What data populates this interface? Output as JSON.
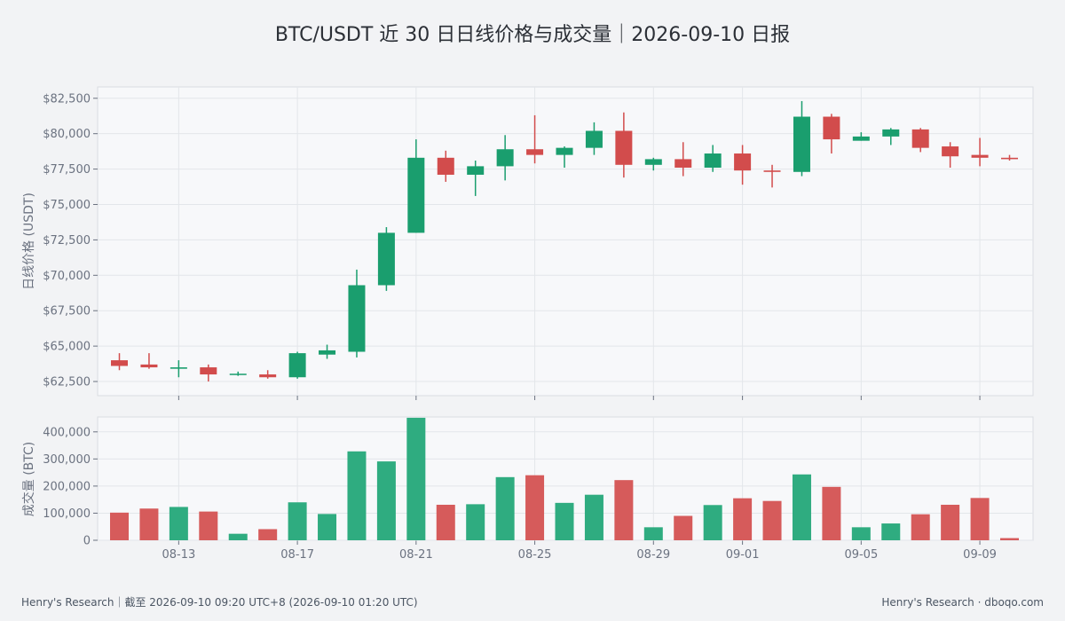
{
  "title": "BTC/USDT 近 30 日日线价格与成交量｜2026-09-10 日报",
  "footer": {
    "left": "Henry's Research｜截至 2026-09-10 09:20 UTC+8 (2026-09-10 01:20 UTC)",
    "right": "Henry's Research · dboqo.com"
  },
  "colors": {
    "up": "#1a9e6e",
    "down": "#d24c4c",
    "up_bar": "#2fac80",
    "down_bar": "#d65b5b"
  },
  "chart_data": [
    {
      "type": "candlestick",
      "ylabel": "日线价格 (USDT)",
      "ylim": [
        61500,
        83300
      ],
      "yticks": [
        62500,
        65000,
        67500,
        70000,
        72500,
        75000,
        77500,
        80000,
        82500
      ],
      "ytick_labels": [
        "$62,500",
        "$65,000",
        "$67,500",
        "$70,000",
        "$72,500",
        "$75,000",
        "$77,500",
        "$80,000",
        "$82,500"
      ],
      "xlabel": "",
      "x": [
        "08-11",
        "08-12",
        "08-13",
        "08-14",
        "08-15",
        "08-16",
        "08-17",
        "08-18",
        "08-19",
        "08-20",
        "08-21",
        "08-22",
        "08-23",
        "08-24",
        "08-25",
        "08-26",
        "08-27",
        "08-28",
        "08-29",
        "08-30",
        "08-31",
        "09-01",
        "09-02",
        "09-03",
        "09-04",
        "09-05",
        "09-06",
        "09-07",
        "09-08",
        "09-09",
        "09-10"
      ],
      "xtick_labels": [
        "08-13",
        "08-17",
        "08-21",
        "08-25",
        "08-29",
        "09-01",
        "09-05",
        "09-09"
      ],
      "candles": [
        {
          "o": 64000,
          "h": 64500,
          "l": 63300,
          "c": 63600
        },
        {
          "o": 63700,
          "h": 64500,
          "l": 63400,
          "c": 63500
        },
        {
          "o": 63400,
          "h": 64000,
          "l": 62800,
          "c": 63500
        },
        {
          "o": 63500,
          "h": 63700,
          "l": 62500,
          "c": 63000
        },
        {
          "o": 63000,
          "h": 63200,
          "l": 62900,
          "c": 63050
        },
        {
          "o": 63000,
          "h": 63300,
          "l": 62700,
          "c": 62800
        },
        {
          "o": 62800,
          "h": 64600,
          "l": 62700,
          "c": 64500
        },
        {
          "o": 64400,
          "h": 65100,
          "l": 64100,
          "c": 64700
        },
        {
          "o": 64600,
          "h": 70400,
          "l": 64200,
          "c": 69300
        },
        {
          "o": 69300,
          "h": 73400,
          "l": 68900,
          "c": 73000
        },
        {
          "o": 73000,
          "h": 79600,
          "l": 73000,
          "c": 78300
        },
        {
          "o": 78300,
          "h": 78800,
          "l": 76600,
          "c": 77100
        },
        {
          "o": 77100,
          "h": 78100,
          "l": 75600,
          "c": 77700
        },
        {
          "o": 77700,
          "h": 79900,
          "l": 76700,
          "c": 78900
        },
        {
          "o": 78900,
          "h": 81300,
          "l": 77900,
          "c": 78500
        },
        {
          "o": 78500,
          "h": 79100,
          "l": 77600,
          "c": 79000
        },
        {
          "o": 79000,
          "h": 80800,
          "l": 78500,
          "c": 80200
        },
        {
          "o": 80200,
          "h": 81500,
          "l": 76900,
          "c": 77800
        },
        {
          "o": 77800,
          "h": 78300,
          "l": 77400,
          "c": 78200
        },
        {
          "o": 78200,
          "h": 79400,
          "l": 77000,
          "c": 77600
        },
        {
          "o": 77600,
          "h": 79200,
          "l": 77300,
          "c": 78600
        },
        {
          "o": 78600,
          "h": 79200,
          "l": 76400,
          "c": 77400
        },
        {
          "o": 77400,
          "h": 77800,
          "l": 76200,
          "c": 77300
        },
        {
          "o": 77300,
          "h": 82300,
          "l": 77000,
          "c": 81200
        },
        {
          "o": 81200,
          "h": 81400,
          "l": 78600,
          "c": 79600
        },
        {
          "o": 79500,
          "h": 80100,
          "l": 79500,
          "c": 79800
        },
        {
          "o": 79800,
          "h": 80400,
          "l": 79200,
          "c": 80300
        },
        {
          "o": 80300,
          "h": 80400,
          "l": 78700,
          "c": 79000
        },
        {
          "o": 79100,
          "h": 79400,
          "l": 77600,
          "c": 78400
        },
        {
          "o": 78500,
          "h": 79700,
          "l": 77700,
          "c": 78300
        },
        {
          "o": 78300,
          "h": 78500,
          "l": 78100,
          "c": 78200
        }
      ]
    },
    {
      "type": "bar",
      "ylabel": "成交量 (BTC)",
      "ylim": [
        0,
        455000
      ],
      "yticks": [
        0,
        100000,
        200000,
        300000,
        400000
      ],
      "ytick_labels": [
        "0",
        "100,000",
        "200,000",
        "300,000",
        "400,000"
      ],
      "values": [
        102000,
        117000,
        123000,
        106000,
        24000,
        41000,
        140000,
        97000,
        328000,
        291000,
        452000,
        131000,
        133000,
        233000,
        240000,
        138000,
        168000,
        222000,
        48000,
        90000,
        130000,
        155000,
        145000,
        243000,
        197000,
        48000,
        62000,
        96000,
        131000,
        156000,
        8000
      ]
    }
  ]
}
